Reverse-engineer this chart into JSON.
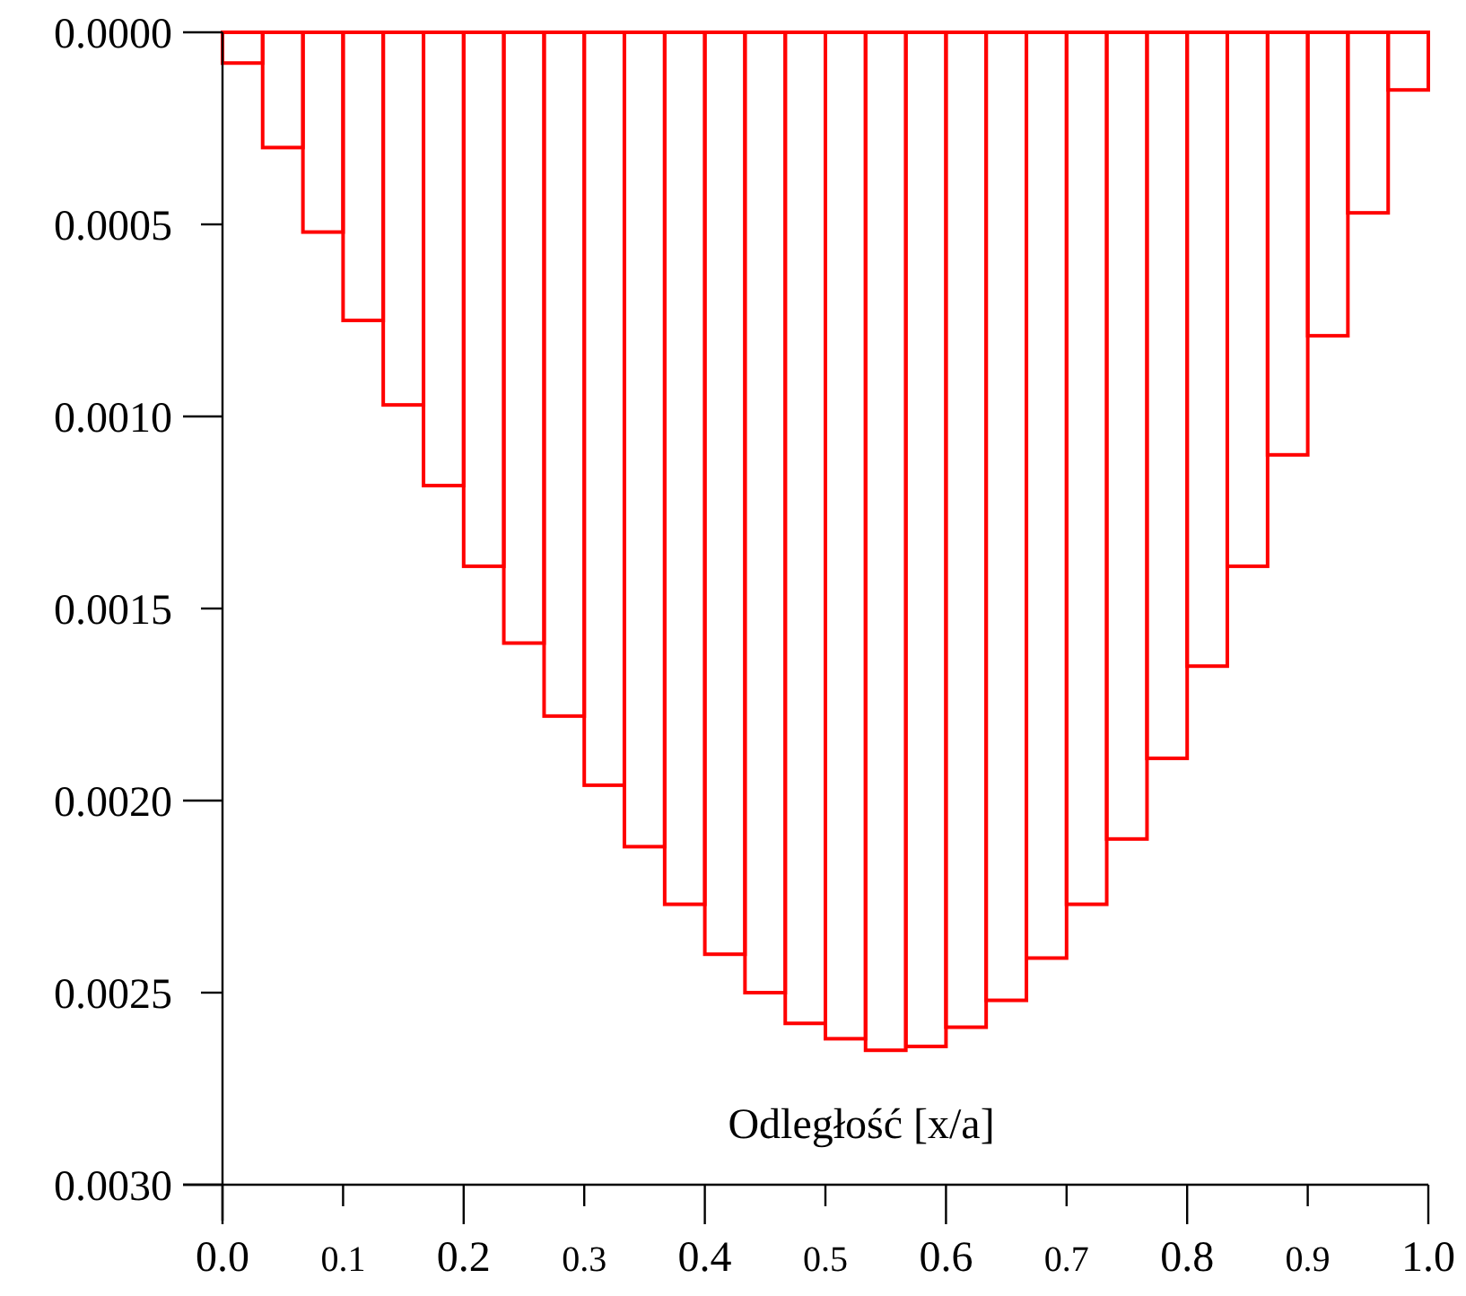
{
  "chart_data": {
    "type": "histogram",
    "xlabel": "Odległość [x/a]",
    "color": "#ff0000",
    "bins": [
      0,
      0.0333,
      0.0667,
      0.1,
      0.1333,
      0.1667,
      0.2,
      0.2333,
      0.2667,
      0.3,
      0.3333,
      0.3667,
      0.4,
      0.4333,
      0.4667,
      0.5,
      0.5333,
      0.5667,
      0.6,
      0.6333,
      0.6667,
      0.7,
      0.7333,
      0.7667,
      0.8,
      0.8333,
      0.8667,
      0.9,
      0.9333,
      0.9667,
      1
    ],
    "values": [
      8e-05,
      0.0003,
      0.00052,
      0.00075,
      0.00097,
      0.00118,
      0.00139,
      0.00159,
      0.00178,
      0.00196,
      0.00212,
      0.00227,
      0.0024,
      0.0025,
      0.00258,
      0.00262,
      0.00265,
      0.00264,
      0.00259,
      0.00252,
      0.00241,
      0.00227,
      0.0021,
      0.00189,
      0.00165,
      0.00139,
      0.0011,
      0.00079,
      0.00047,
      0.00015
    ],
    "xlim": [
      0,
      1
    ],
    "xticks": [
      {
        "value": 0,
        "label": "0.0"
      },
      {
        "value": 0.1,
        "label": "0.1"
      },
      {
        "value": 0.2,
        "label": "0.2"
      },
      {
        "value": 0.3,
        "label": "0.3"
      },
      {
        "value": 0.4,
        "label": "0.4"
      },
      {
        "value": 0.5,
        "label": "0.5"
      },
      {
        "value": 0.6,
        "label": "0.6"
      },
      {
        "value": 0.7,
        "label": "0.7"
      },
      {
        "value": 0.8,
        "label": "0.8"
      },
      {
        "value": 0.9,
        "label": "0.9"
      },
      {
        "value": 1,
        "label": "1.0"
      }
    ],
    "ylim": [
      0.003,
      0
    ],
    "yticks": [
      {
        "value": 0,
        "label": "0.0000"
      },
      {
        "value": 0.0005,
        "label": "0.0005"
      },
      {
        "value": 0.001,
        "label": "0.0010"
      },
      {
        "value": 0.0015,
        "label": "0.0015"
      },
      {
        "value": 0.002,
        "label": "0.0020"
      },
      {
        "value": 0.0025,
        "label": "0.0025"
      },
      {
        "value": 0.003,
        "label": "0.0030"
      }
    ],
    "grid": false
  }
}
